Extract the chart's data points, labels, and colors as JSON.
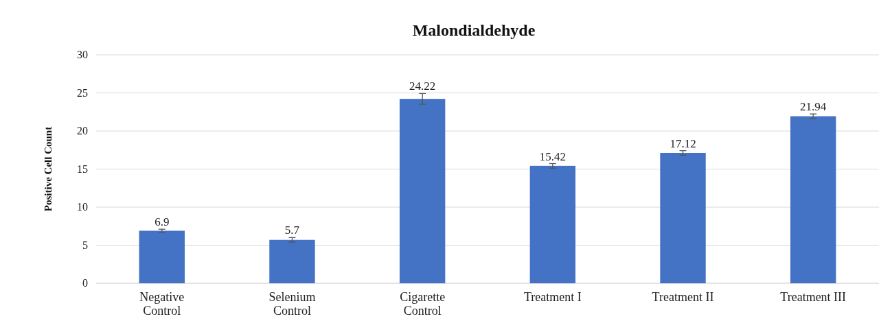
{
  "chart_data": {
    "type": "bar",
    "title": "Malondialdehyde",
    "ylabel": "Positive Cell Count",
    "categories": [
      "Negative Control",
      "Selenium Control",
      "Cigarette Control",
      "Treatment I",
      "Treatment II",
      "Treatment III"
    ],
    "values": [
      6.9,
      5.7,
      24.22,
      15.42,
      17.12,
      21.94
    ],
    "errors": [
      0.2,
      0.3,
      0.7,
      0.3,
      0.3,
      0.3
    ],
    "color": "#4472c4",
    "ylim": [
      0,
      30
    ],
    "yticks": [
      0,
      5,
      10,
      15,
      20,
      25,
      30
    ],
    "grid": "y",
    "data_labels": true
  }
}
